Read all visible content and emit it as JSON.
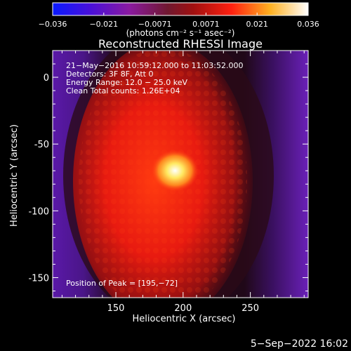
{
  "chart_data": {
    "type": "heatmap",
    "title": "Reconstructed RHESSI Image",
    "colorbar": {
      "ticks": [
        "−0.036",
        "−0.021",
        "−0.0071",
        "0.0071",
        "0.021",
        "0.036"
      ],
      "range": [
        -0.036,
        0.036
      ],
      "label": "(photons cm⁻² s⁻¹ asec⁻²)",
      "colors": [
        "#0a1aff",
        "#5a10c8",
        "#8a1aa0",
        "#7a1a40",
        "#e01010",
        "#ff7a10",
        "#ffe040",
        "#ffffff"
      ]
    },
    "xlabel": "Heliocentric X (arcsec)",
    "ylabel": "Heliocentric Y (arcsec)",
    "xlim": [
      103,
      293
    ],
    "ylim": [
      -165,
      20
    ],
    "xticks": [
      150,
      200,
      250
    ],
    "yticks": [
      0,
      -50,
      -100,
      -150
    ],
    "info_lines": [
      "21−May−2016 10:59:12.000 to 11:03:52.000",
      "Detectors: 3F 8F, Att 0",
      "Energy Range: 12.0 − 25.0 keV",
      "Clean     Total counts: 1.26E+04"
    ],
    "peak_label": "Position of Peak = [195,−72]",
    "peak": {
      "x": 195,
      "y": -72
    },
    "timestamp": "5−Sep−2022 16:02"
  }
}
